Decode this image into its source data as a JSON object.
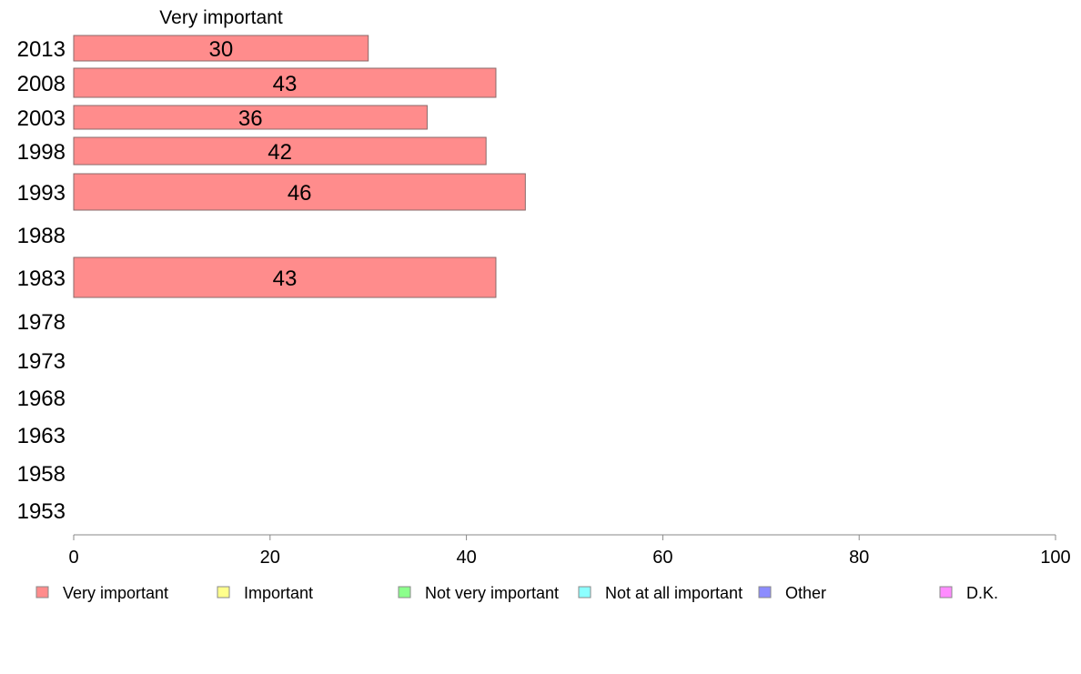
{
  "chart_data": {
    "type": "bar",
    "orientation": "horizontal",
    "stacked": true,
    "categories": [
      "2013",
      "2008",
      "2003",
      "1998",
      "1993",
      "1988",
      "1983",
      "1978",
      "1973",
      "1968",
      "1963",
      "1958",
      "1953"
    ],
    "series": [
      {
        "name": "Very important",
        "color": "#ff8c8c",
        "values": [
          30,
          43,
          36,
          42,
          46,
          null,
          43,
          null,
          null,
          null,
          null,
          null,
          null
        ],
        "value_labels": [
          "30",
          "43",
          "36",
          "42",
          "46",
          "",
          "43",
          "",
          "",
          "",
          "",
          "",
          ""
        ]
      }
    ],
    "legend": [
      {
        "label": "Very important",
        "color": "#ff8c8c"
      },
      {
        "label": "Important",
        "color": "#ffff8c"
      },
      {
        "label": "Not very important",
        "color": "#8cff8c"
      },
      {
        "label": "Not at all important",
        "color": "#8cffff"
      },
      {
        "label": "Other",
        "color": "#8c8cff"
      },
      {
        "label": "D.K.",
        "color": "#ff8cff"
      }
    ],
    "xlim": [
      0,
      100
    ],
    "xticks": [
      0,
      20,
      40,
      60,
      80,
      100
    ],
    "xtick_labels": [
      "0",
      "20",
      "40",
      "60",
      "80",
      "100"
    ],
    "grid": false,
    "legend_position": "bottom"
  }
}
